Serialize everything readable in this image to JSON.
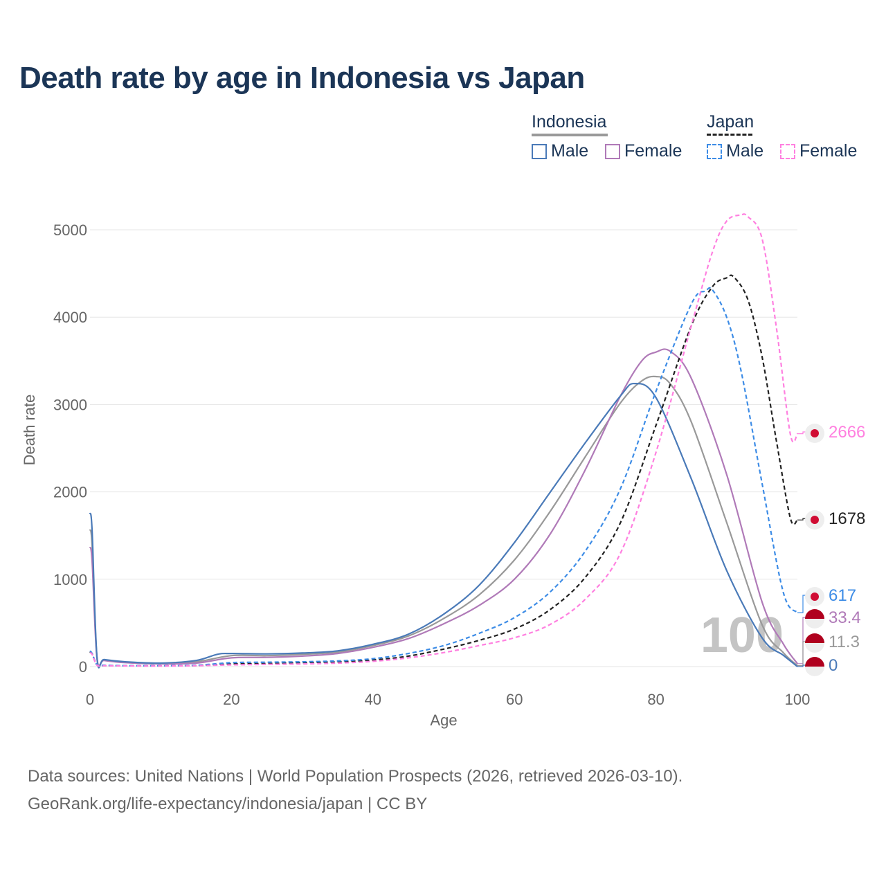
{
  "title": "Death rate by age in Indonesia vs Japan",
  "legend": {
    "groups": [
      {
        "name": "Indonesia",
        "line_style": "solid",
        "line_color": "#999999",
        "items": [
          {
            "label": "Male",
            "color": "#4a7ab8"
          },
          {
            "label": "Female",
            "color": "#b07ab8"
          }
        ]
      },
      {
        "name": "Japan",
        "line_style": "dashed",
        "line_color": "#222222",
        "items": [
          {
            "label": "Male",
            "color": "#3d8ce6"
          },
          {
            "label": "Female",
            "color": "#ff80e0"
          }
        ]
      }
    ]
  },
  "watermark": "100",
  "end_labels": [
    {
      "text": "2666",
      "color": "#ff80e0",
      "icon": "japan-flag-icon"
    },
    {
      "text": "1678",
      "color": "#222222",
      "icon": "japan-flag-icon"
    },
    {
      "text": "617",
      "color": "#3d8ce6",
      "icon": "japan-flag-icon"
    },
    {
      "text": "33.4",
      "color": "#b07ab8",
      "icon": "indonesia-flag-icon"
    },
    {
      "text": "11.3",
      "color": "#999999",
      "icon": "indonesia-flag-icon"
    },
    {
      "text": "0",
      "color": "#4a7ab8",
      "icon": "indonesia-flag-icon"
    }
  ],
  "chart_data": {
    "type": "line",
    "title": "Death rate by age in Indonesia vs Japan",
    "xlabel": "Age",
    "ylabel": "Death rate",
    "xlim": [
      0,
      100
    ],
    "ylim": [
      0,
      5000
    ],
    "xticks": [
      0,
      20,
      40,
      60,
      80,
      100
    ],
    "yticks": [
      0,
      1000,
      2000,
      3000,
      4000,
      5000
    ],
    "grid": true,
    "series": [
      {
        "name": "Indonesia Male",
        "color": "#4a7ab8",
        "dash": "solid",
        "x": [
          0,
          0.3,
          1,
          2,
          5,
          10,
          15,
          18,
          20,
          25,
          30,
          35,
          40,
          45,
          50,
          55,
          60,
          65,
          70,
          75,
          77,
          80,
          85,
          90,
          95,
          98,
          100
        ],
        "y": [
          1760,
          1550,
          100,
          80,
          55,
          40,
          70,
          140,
          150,
          145,
          155,
          180,
          255,
          370,
          600,
          930,
          1420,
          1990,
          2560,
          3100,
          3240,
          3080,
          2150,
          1100,
          330,
          130,
          0
        ]
      },
      {
        "name": "Indonesia Female",
        "color": "#b07ab8",
        "dash": "solid",
        "x": [
          0,
          0.3,
          1,
          2,
          5,
          10,
          15,
          20,
          25,
          30,
          35,
          40,
          45,
          50,
          55,
          60,
          65,
          70,
          75,
          78,
          80,
          82,
          85,
          90,
          95,
          98,
          100
        ],
        "y": [
          1370,
          1200,
          90,
          70,
          45,
          30,
          40,
          100,
          105,
          120,
          150,
          220,
          320,
          490,
          700,
          1000,
          1510,
          2250,
          3100,
          3500,
          3600,
          3610,
          3300,
          2200,
          740,
          260,
          33.4
        ]
      },
      {
        "name": "Indonesia (total)",
        "color": "#999999",
        "dash": "solid",
        "x": [
          0,
          0.3,
          1,
          2,
          5,
          10,
          15,
          20,
          25,
          30,
          35,
          40,
          45,
          50,
          55,
          60,
          65,
          70,
          75,
          78,
          80,
          82,
          85,
          90,
          95,
          98,
          100
        ],
        "y": [
          1570,
          1380,
          95,
          75,
          50,
          35,
          55,
          125,
          125,
          140,
          165,
          240,
          350,
          550,
          820,
          1220,
          1770,
          2400,
          3020,
          3270,
          3320,
          3240,
          2800,
          1650,
          480,
          160,
          11.3
        ]
      },
      {
        "name": "Japan Male",
        "color": "#3d8ce6",
        "dash": "dashed",
        "x": [
          0,
          0.3,
          1,
          2,
          5,
          10,
          15,
          20,
          25,
          30,
          35,
          40,
          45,
          50,
          55,
          60,
          65,
          70,
          75,
          80,
          85,
          87,
          88,
          90,
          92,
          95,
          98,
          100
        ],
        "y": [
          180,
          150,
          20,
          15,
          10,
          10,
          15,
          45,
          50,
          55,
          65,
          90,
          150,
          240,
          380,
          560,
          850,
          1320,
          2040,
          3150,
          4150,
          4300,
          4310,
          4000,
          3400,
          2100,
          850,
          617
        ]
      },
      {
        "name": "Japan Female",
        "color": "#ff80e0",
        "dash": "dashed",
        "x": [
          0,
          0.3,
          1,
          2,
          5,
          10,
          15,
          20,
          25,
          30,
          35,
          40,
          45,
          50,
          55,
          60,
          65,
          70,
          75,
          80,
          85,
          88,
          90,
          92,
          93,
          95,
          97,
          99,
          100
        ],
        "y": [
          160,
          140,
          15,
          10,
          8,
          6,
          10,
          20,
          25,
          30,
          40,
          60,
          100,
          160,
          240,
          330,
          480,
          770,
          1300,
          2450,
          3900,
          4750,
          5100,
          5170,
          5150,
          4900,
          3900,
          2660,
          2666
        ]
      },
      {
        "name": "Japan (total)",
        "color": "#222222",
        "dash": "dashed",
        "x": [
          0,
          0.3,
          1,
          2,
          5,
          10,
          15,
          20,
          25,
          30,
          35,
          40,
          45,
          50,
          55,
          60,
          65,
          70,
          75,
          80,
          85,
          88,
          90,
          91,
          93,
          95,
          97,
          99,
          100
        ],
        "y": [
          170,
          145,
          18,
          12,
          9,
          8,
          12,
          30,
          35,
          45,
          55,
          75,
          120,
          200,
          300,
          430,
          650,
          1020,
          1650,
          2760,
          3900,
          4350,
          4450,
          4460,
          4200,
          3550,
          2600,
          1700,
          1678
        ]
      }
    ]
  },
  "footer": {
    "line1": "Data sources: United Nations | World Population Prospects (2026, retrieved 2026-03-10).",
    "line2": "GeoRank.org/life-expectancy/indonesia/japan | CC BY"
  }
}
